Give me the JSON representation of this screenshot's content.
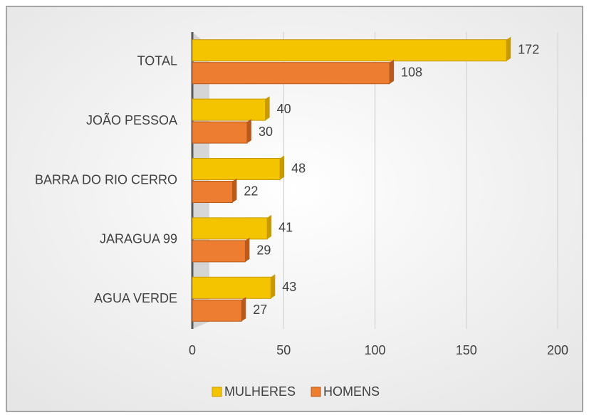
{
  "chart_data": {
    "type": "bar",
    "orientation": "horizontal",
    "categories": [
      "TOTAL",
      "JOÃO PESSOA",
      "BARRA DO RIO CERRO",
      "JARAGUA 99",
      "AGUA VERDE"
    ],
    "series": [
      {
        "name": "MULHERES",
        "color": "#f5c400",
        "values": [
          172,
          40,
          48,
          41,
          43
        ]
      },
      {
        "name": "HOMENS",
        "color": "#ed7d31",
        "values": [
          108,
          30,
          22,
          29,
          27
        ]
      }
    ],
    "xlim": [
      0,
      200
    ],
    "xticks": [
      0,
      50,
      100,
      150,
      200
    ],
    "grid": true,
    "legend": "bottom"
  }
}
